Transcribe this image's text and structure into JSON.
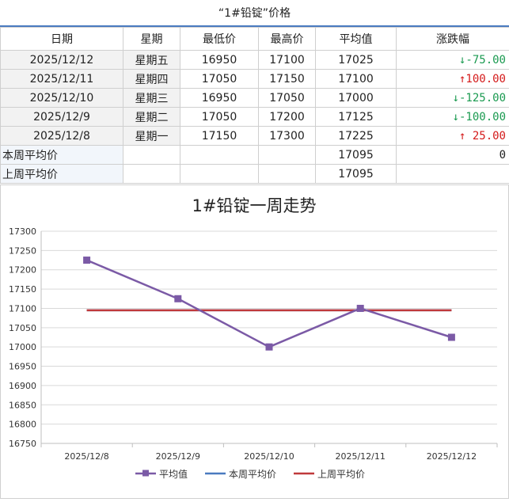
{
  "sheet_title": "“1#铅锭”价格",
  "table": {
    "headers": [
      "日期",
      "星期",
      "最低价",
      "最高价",
      "平均值",
      "涨跌幅"
    ],
    "rows": [
      {
        "date": "2025/12/12",
        "weekday": "星期五",
        "low": "16950",
        "high": "17100",
        "avg": "17025",
        "change": "↓-75.00",
        "dir": "down"
      },
      {
        "date": "2025/12/11",
        "weekday": "星期四",
        "low": "17050",
        "high": "17150",
        "avg": "17100",
        "change": "↑100.00",
        "dir": "up"
      },
      {
        "date": "2025/12/10",
        "weekday": "星期三",
        "low": "16950",
        "high": "17050",
        "avg": "17000",
        "change": "↓-125.00",
        "dir": "down"
      },
      {
        "date": "2025/12/9",
        "weekday": "星期二",
        "low": "17050",
        "high": "17200",
        "avg": "17125",
        "change": "↓-100.00",
        "dir": "down"
      },
      {
        "date": "2025/12/8",
        "weekday": "星期一",
        "low": "17150",
        "high": "17300",
        "avg": "17225",
        "change": "↑ 25.00",
        "dir": "up"
      }
    ],
    "this_week_label": "本周平均价",
    "this_week_avg": "17095",
    "this_week_change": "0",
    "last_week_label": "上周平均价",
    "last_week_avg": "17095"
  },
  "colors": {
    "avg_line": "#7b5aa6",
    "this_week_line": "#4a7bc0",
    "last_week_line": "#c0393b",
    "up": "#d41a1a",
    "down": "#1a9a50"
  },
  "chart_data": {
    "type": "line",
    "title": "1#铅锭一周走势",
    "categories": [
      "2025/12/8",
      "2025/12/9",
      "2025/12/10",
      "2025/12/11",
      "2025/12/12"
    ],
    "series": [
      {
        "name": "平均值",
        "values": [
          17225,
          17125,
          17000,
          17100,
          17025
        ],
        "marker": "square"
      },
      {
        "name": "本周平均价",
        "values": [
          17095,
          17095,
          17095,
          17095,
          17095
        ]
      },
      {
        "name": "上周平均价",
        "values": [
          17095,
          17095,
          17095,
          17095,
          17095
        ]
      }
    ],
    "ylim": [
      16750,
      17300
    ],
    "yticks": [
      16750,
      16800,
      16850,
      16900,
      16950,
      17000,
      17050,
      17100,
      17150,
      17200,
      17250,
      17300
    ],
    "grid": true,
    "legend": "bottom"
  }
}
